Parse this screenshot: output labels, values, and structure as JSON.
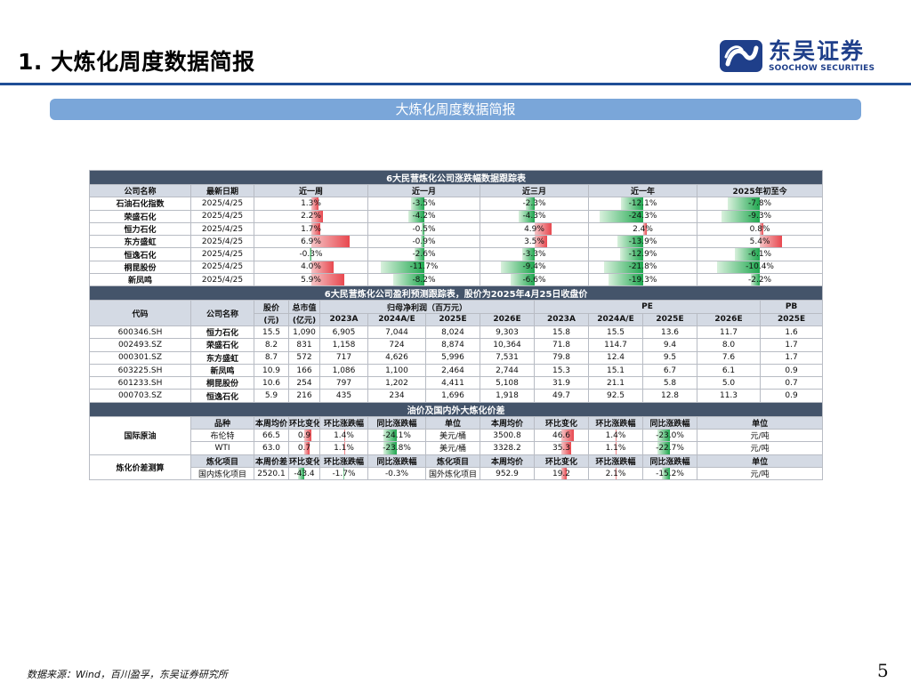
{
  "page": {
    "title": "1. 大炼化周度数据简报",
    "banner": "大炼化周度数据简报",
    "footer": "数据来源：Wind，百川盈孚，东吴证券研究所",
    "page_number": "5"
  },
  "logo": {
    "cn": "东吴证券",
    "en": "SOOCHOW SECURITIES",
    "color": "#1f3f8a"
  },
  "colors": {
    "up": "#e8484f",
    "down": "#1fa74f",
    "header_bg": "#d4dae4",
    "section_bg": "#44546a"
  },
  "table1": {
    "title": "6大民营炼化公司涨跌幅数据跟踪表",
    "headers": [
      "公司名称",
      "最新日期",
      "近一周",
      "近一月",
      "近三月",
      "近一年",
      "2025年初至今"
    ],
    "rows": [
      {
        "name": "石油石化指数",
        "date": "2025/4/25",
        "vals": [
          "1.3%",
          "-3.5%",
          "-2.3%",
          "-12.1%",
          "-7.8%"
        ],
        "nums": [
          1.3,
          -3.5,
          -2.3,
          -12.1,
          -7.8
        ]
      },
      {
        "name": "荣盛石化",
        "date": "2025/4/25",
        "vals": [
          "2.2%",
          "-4.2%",
          "-4.3%",
          "-24.3%",
          "-9.3%"
        ],
        "nums": [
          2.2,
          -4.2,
          -4.3,
          -24.3,
          -9.3
        ]
      },
      {
        "name": "恒力石化",
        "date": "2025/4/25",
        "vals": [
          "1.7%",
          "-0.5%",
          "4.9%",
          "2.4%",
          "0.8%"
        ],
        "nums": [
          1.7,
          -0.5,
          4.9,
          2.4,
          0.8
        ]
      },
      {
        "name": "东方盛虹",
        "date": "2025/4/25",
        "vals": [
          "6.9%",
          "-0.9%",
          "3.5%",
          "-13.9%",
          "5.4%"
        ],
        "nums": [
          6.9,
          -0.9,
          3.5,
          -13.9,
          5.4
        ]
      },
      {
        "name": "恒逸石化",
        "date": "2025/4/25",
        "vals": [
          "-0.3%",
          "-2.6%",
          "-3.3%",
          "-12.9%",
          "-6.1%"
        ],
        "nums": [
          -0.3,
          -2.6,
          -3.3,
          -12.9,
          -6.1
        ]
      },
      {
        "name": "桐昆股份",
        "date": "2025/4/25",
        "vals": [
          "4.0%",
          "-11.7%",
          "-9.4%",
          "-21.8%",
          "-10.4%"
        ],
        "nums": [
          4.0,
          -11.7,
          -9.4,
          -21.8,
          -10.4
        ]
      },
      {
        "name": "新凤鸣",
        "date": "2025/4/25",
        "vals": [
          "5.9%",
          "-8.2%",
          "-6.6%",
          "-19.3%",
          "-2.2%"
        ],
        "nums": [
          5.9,
          -8.2,
          -6.6,
          -19.3,
          -2.2
        ]
      }
    ]
  },
  "table2": {
    "title": "6大民营炼化公司盈利预测跟踪表，股价为2025年4月25日收盘价",
    "h_code": "代码",
    "h_name": "公司名称",
    "h_price_a": "股价",
    "h_price_b": "(元)",
    "h_cap_a": "总市值",
    "h_cap_b": "(亿元)",
    "h_profit": "归母净利润（百万元）",
    "h_pe": "PE",
    "h_pb": "PB",
    "years": [
      "2023A",
      "2024A/E",
      "2025E",
      "2026E",
      "2023A",
      "2024A/E",
      "2025E",
      "2026E",
      "2025E"
    ],
    "rows": [
      [
        "600346.SH",
        "恒力石化",
        "15.5",
        "1,090",
        "6,905",
        "7,044",
        "8,024",
        "9,303",
        "15.8",
        "15.5",
        "13.6",
        "11.7",
        "1.6"
      ],
      [
        "002493.SZ",
        "荣盛石化",
        "8.2",
        "831",
        "1,158",
        "724",
        "8,874",
        "10,364",
        "71.8",
        "114.7",
        "9.4",
        "8.0",
        "1.7"
      ],
      [
        "000301.SZ",
        "东方盛虹",
        "8.7",
        "572",
        "717",
        "4,626",
        "5,996",
        "7,531",
        "79.8",
        "12.4",
        "9.5",
        "7.6",
        "1.7"
      ],
      [
        "603225.SH",
        "新凤鸣",
        "10.9",
        "166",
        "1,086",
        "1,100",
        "2,464",
        "2,744",
        "15.3",
        "15.1",
        "6.7",
        "6.1",
        "0.9"
      ],
      [
        "601233.SH",
        "桐昆股份",
        "10.6",
        "254",
        "797",
        "1,202",
        "4,411",
        "5,108",
        "31.9",
        "21.1",
        "5.8",
        "5.0",
        "0.7"
      ],
      [
        "000703.SZ",
        "恒逸石化",
        "5.9",
        "216",
        "435",
        "234",
        "1,696",
        "1,918",
        "49.7",
        "92.5",
        "12.8",
        "11.3",
        "0.9"
      ]
    ]
  },
  "table3": {
    "title": "油价及国内外大炼化价差",
    "crude_label": "国际原油",
    "crude_headers": [
      "品种",
      "本周均价",
      "环比变化",
      "环比涨跌幅",
      "同比涨跌幅",
      "单位",
      "本周均价",
      "环比变化",
      "环比涨跌幅",
      "同比涨跌幅",
      "单位"
    ],
    "crude_rows": [
      {
        "name": "布伦特",
        "price": "66.5",
        "chg": "0.9",
        "chg_n": 0.9,
        "wow": "1.4%",
        "wow_n": 1.4,
        "yoy": "-24.1%",
        "yoy_n": -24.1,
        "unit": "美元/桶",
        "price2": "3500.8",
        "chg2": "46.6",
        "chg2_n": 46.6,
        "wow2": "1.4%",
        "wow2_n": 1.4,
        "yoy2": "-23.0%",
        "yoy2_n": -23.0,
        "unit2": "元/吨"
      },
      {
        "name": "WTI",
        "price": "63.0",
        "chg": "0.7",
        "chg_n": 0.7,
        "wow": "1.1%",
        "wow_n": 1.1,
        "yoy": "-23.8%",
        "yoy_n": -23.8,
        "unit": "美元/桶",
        "price2": "3328.2",
        "chg2": "35.3",
        "chg2_n": 35.3,
        "wow2": "1.1%",
        "wow2_n": 1.1,
        "yoy2": "-22.7%",
        "yoy2_n": -22.7,
        "unit2": "元/吨"
      }
    ],
    "spread_label": "炼化价差测算",
    "spread_headers": [
      "炼化项目",
      "本周价差",
      "环比变化",
      "环比涨跌幅",
      "同比涨跌幅",
      "炼化项目",
      "本周均价",
      "环比变化",
      "环比涨跌幅",
      "同比涨跌幅",
      "单位"
    ],
    "spread_row": {
      "name": "国内炼化项目",
      "price": "2520.1",
      "chg": "-43.4",
      "chg_n": -43.4,
      "wow": "-1.7%",
      "wow_n": -1.7,
      "yoy": "-0.3%",
      "yoy_n": -0.3,
      "name2": "国外炼化项目",
      "price2": "952.9",
      "chg2": "19.2",
      "chg2_n": 19.2,
      "wow2": "2.1%",
      "wow2_n": 2.1,
      "yoy2": "-15.2%",
      "yoy2_n": -15.2,
      "unit2": "元/吨"
    }
  }
}
